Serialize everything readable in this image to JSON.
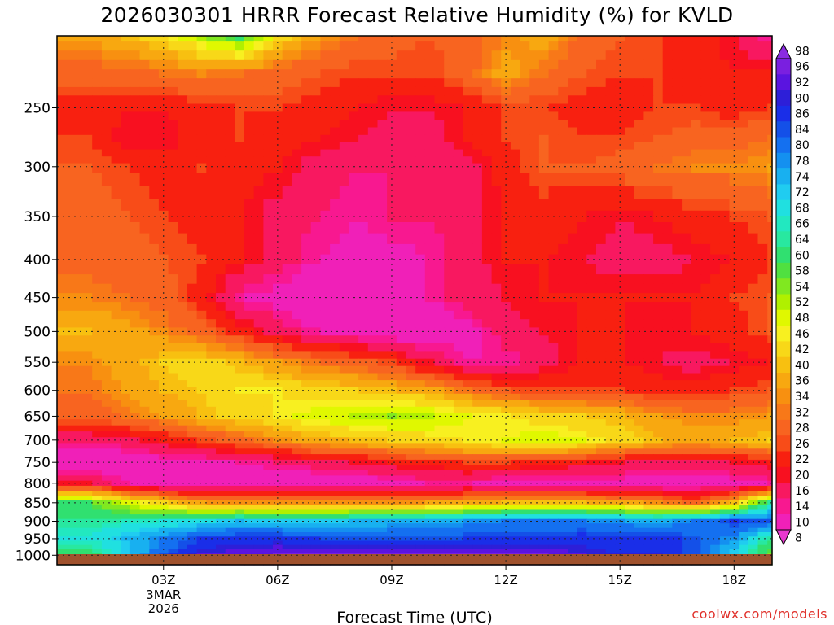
{
  "chart_data": {
    "type": "heatmap",
    "title": "2026030301 HRRR Forecast Relative Humidity (%) for KVLD",
    "xlabel": "Forecast Time (UTC)",
    "ylabel": "",
    "x_ticks": [
      {
        "label": "03Z",
        "sub": [
          "3MAR",
          "2026"
        ]
      },
      {
        "label": "06Z",
        "sub": []
      },
      {
        "label": "09Z",
        "sub": []
      },
      {
        "label": "12Z",
        "sub": []
      },
      {
        "label": "15Z",
        "sub": []
      },
      {
        "label": "18Z",
        "sub": []
      }
    ],
    "y_ticks": [
      "250",
      "300",
      "350",
      "400",
      "450",
      "500",
      "550",
      "600",
      "650",
      "700",
      "750",
      "800",
      "850",
      "900",
      "950",
      "1000"
    ],
    "colorbar": {
      "levels": [
        98,
        96,
        92,
        90,
        86,
        84,
        80,
        78,
        74,
        72,
        68,
        66,
        64,
        60,
        58,
        54,
        52,
        48,
        46,
        42,
        40,
        36,
        34,
        32,
        28,
        26,
        22,
        20,
        16,
        14,
        10,
        8
      ],
      "colors": [
        "#8a2be2",
        "#7a1fe0",
        "#5a14e0",
        "#2d1fd8",
        "#1a2ee8",
        "#1450e8",
        "#1470f0",
        "#1490f0",
        "#18b0f0",
        "#20ccf0",
        "#20e0e0",
        "#22e8c0",
        "#28e8a0",
        "#30e070",
        "#50e040",
        "#80e820",
        "#b0f000",
        "#e0f800",
        "#f8f020",
        "#f8d818",
        "#f8c010",
        "#f8a810",
        "#f89010",
        "#f87818",
        "#f86420",
        "#f84c18",
        "#f82010",
        "#f81020",
        "#f81860",
        "#f81890",
        "#f020b8",
        "#e838d0"
      ]
    },
    "profile_times_hours": [
      1,
      2,
      3,
      4,
      5,
      6,
      7,
      8,
      9,
      10,
      11,
      12,
      13,
      14,
      15,
      16,
      17,
      18,
      19
    ],
    "pressure_levels_hPa": [
      200,
      225,
      250,
      275,
      300,
      350,
      400,
      450,
      500,
      550,
      600,
      650,
      700,
      750,
      800,
      850,
      900,
      950,
      1000
    ],
    "rh_percent": [
      [
        36,
        40,
        44,
        52,
        60,
        44,
        36,
        32,
        30,
        28,
        30,
        34,
        38,
        30,
        28,
        26,
        24,
        20,
        14
      ],
      [
        30,
        30,
        32,
        34,
        32,
        30,
        28,
        26,
        26,
        26,
        30,
        38,
        32,
        28,
        26,
        26,
        24,
        22,
        22
      ],
      [
        24,
        22,
        22,
        24,
        26,
        26,
        24,
        22,
        20,
        20,
        22,
        26,
        26,
        24,
        24,
        26,
        26,
        24,
        26
      ],
      [
        26,
        20,
        20,
        24,
        26,
        24,
        22,
        20,
        18,
        18,
        22,
        26,
        28,
        26,
        26,
        28,
        30,
        30,
        32
      ],
      [
        28,
        26,
        24,
        26,
        24,
        22,
        18,
        16,
        16,
        16,
        18,
        24,
        28,
        28,
        30,
        32,
        34,
        34,
        36
      ],
      [
        30,
        28,
        26,
        24,
        22,
        18,
        16,
        14,
        16,
        16,
        18,
        22,
        24,
        22,
        20,
        22,
        24,
        26,
        28
      ],
      [
        30,
        30,
        28,
        26,
        22,
        18,
        14,
        12,
        12,
        14,
        18,
        22,
        22,
        20,
        18,
        18,
        20,
        22,
        26
      ],
      [
        34,
        32,
        30,
        24,
        14,
        12,
        10,
        10,
        12,
        14,
        18,
        20,
        22,
        22,
        22,
        22,
        22,
        26,
        28
      ],
      [
        40,
        38,
        34,
        30,
        24,
        18,
        14,
        12,
        10,
        10,
        12,
        18,
        20,
        22,
        22,
        20,
        22,
        24,
        28
      ],
      [
        34,
        38,
        42,
        44,
        40,
        36,
        32,
        30,
        26,
        20,
        14,
        14,
        18,
        22,
        22,
        20,
        18,
        20,
        22
      ],
      [
        32,
        36,
        40,
        42,
        46,
        46,
        44,
        42,
        40,
        38,
        32,
        28,
        26,
        26,
        26,
        24,
        24,
        26,
        28
      ],
      [
        30,
        32,
        36,
        40,
        44,
        46,
        50,
        52,
        54,
        52,
        48,
        46,
        44,
        42,
        40,
        36,
        34,
        34,
        36
      ],
      [
        16,
        18,
        22,
        26,
        30,
        34,
        38,
        40,
        42,
        44,
        46,
        48,
        50,
        48,
        44,
        40,
        38,
        40,
        42
      ],
      [
        10,
        10,
        12,
        12,
        14,
        16,
        18,
        20,
        22,
        24,
        26,
        26,
        24,
        22,
        20,
        18,
        18,
        20,
        22
      ],
      [
        20,
        14,
        12,
        10,
        10,
        10,
        10,
        10,
        12,
        14,
        14,
        12,
        12,
        12,
        12,
        10,
        10,
        12,
        14
      ],
      [
        60,
        50,
        42,
        36,
        34,
        34,
        34,
        34,
        34,
        36,
        38,
        40,
        40,
        40,
        38,
        34,
        30,
        40,
        64
      ],
      [
        64,
        66,
        68,
        70,
        74,
        72,
        72,
        74,
        76,
        76,
        78,
        80,
        80,
        80,
        78,
        76,
        80,
        86,
        84
      ],
      [
        68,
        74,
        80,
        86,
        88,
        88,
        86,
        84,
        84,
        84,
        86,
        86,
        86,
        88,
        88,
        88,
        84,
        78,
        64
      ],
      [
        60,
        72,
        84,
        92,
        94,
        96,
        96,
        96,
        96,
        96,
        96,
        96,
        96,
        92,
        90,
        90,
        84,
        72,
        56
      ]
    ]
  },
  "watermark": "coolwx.com/models"
}
